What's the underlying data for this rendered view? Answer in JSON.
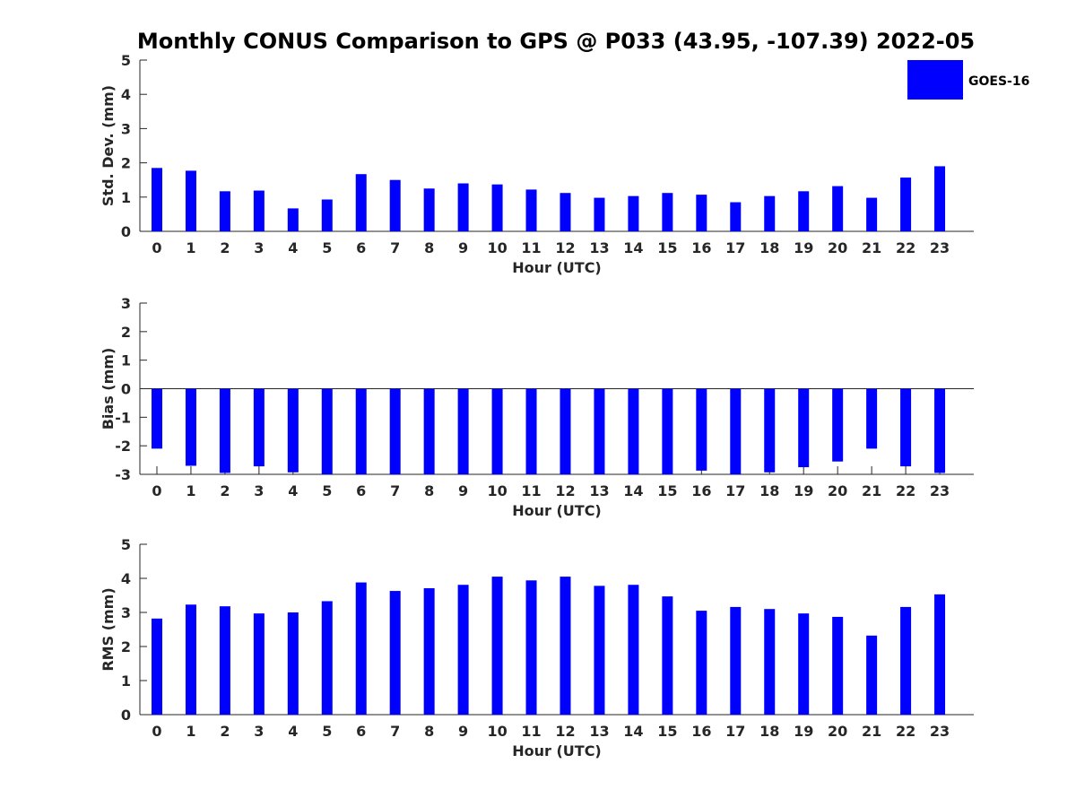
{
  "title": "Monthly CONUS Comparison to GPS @ P033 (43.95, -107.39) 2022-05",
  "legend": {
    "label": "GOES-16",
    "color": "#0000ff",
    "placement": "top-right"
  },
  "chart_data": [
    {
      "type": "bar",
      "ylabel": "Std. Dev. (mm)",
      "xlabel": "Hour (UTC)",
      "ylim": [
        0,
        5
      ],
      "yticks": [
        "0",
        "1",
        "2",
        "3",
        "4",
        "5"
      ],
      "categories": [
        "0",
        "1",
        "2",
        "3",
        "4",
        "5",
        "6",
        "7",
        "8",
        "9",
        "10",
        "11",
        "12",
        "13",
        "14",
        "15",
        "16",
        "17",
        "18",
        "19",
        "20",
        "21",
        "22",
        "23"
      ],
      "series": [
        {
          "name": "GOES-16",
          "color": "#0000ff",
          "values": [
            1.85,
            1.77,
            1.17,
            1.19,
            0.67,
            0.93,
            1.67,
            1.5,
            1.25,
            1.4,
            1.37,
            1.22,
            1.12,
            0.98,
            1.03,
            1.12,
            1.07,
            0.85,
            1.03,
            1.17,
            1.32,
            0.98,
            1.57,
            1.9
          ]
        }
      ]
    },
    {
      "type": "bar",
      "ylabel": "Bias (mm)",
      "xlabel": "Hour (UTC)",
      "ylim": [
        -3,
        3
      ],
      "yticks": [
        "-3",
        "-2",
        "-1",
        "0",
        "1",
        "2",
        "3"
      ],
      "categories": [
        "0",
        "1",
        "2",
        "3",
        "4",
        "5",
        "6",
        "7",
        "8",
        "9",
        "10",
        "11",
        "12",
        "13",
        "14",
        "15",
        "16",
        "17",
        "18",
        "19",
        "20",
        "21",
        "22",
        "23"
      ],
      "series": [
        {
          "name": "GOES-16",
          "color": "#0000ff",
          "values": [
            -2.1,
            -2.7,
            -2.95,
            -2.72,
            -2.93,
            -3.0,
            -3.0,
            -3.0,
            -3.0,
            -3.0,
            -3.0,
            -3.0,
            -3.0,
            -3.0,
            -3.0,
            -3.0,
            -2.87,
            -3.0,
            -2.93,
            -2.75,
            -2.55,
            -2.1,
            -2.72,
            -2.95
          ]
        }
      ]
    },
    {
      "type": "bar",
      "ylabel": "RMS (mm)",
      "xlabel": "Hour (UTC)",
      "ylim": [
        0,
        5
      ],
      "yticks": [
        "0",
        "1",
        "2",
        "3",
        "4",
        "5"
      ],
      "categories": [
        "0",
        "1",
        "2",
        "3",
        "4",
        "5",
        "6",
        "7",
        "8",
        "9",
        "10",
        "11",
        "12",
        "13",
        "14",
        "15",
        "16",
        "17",
        "18",
        "19",
        "20",
        "21",
        "22",
        "23"
      ],
      "series": [
        {
          "name": "GOES-16",
          "color": "#0000ff",
          "values": [
            2.82,
            3.23,
            3.18,
            2.97,
            3.0,
            3.33,
            3.88,
            3.63,
            3.71,
            3.81,
            4.05,
            3.94,
            4.05,
            3.78,
            3.81,
            3.47,
            3.05,
            3.16,
            3.1,
            2.97,
            2.87,
            2.32,
            3.16,
            3.53
          ]
        }
      ]
    }
  ]
}
